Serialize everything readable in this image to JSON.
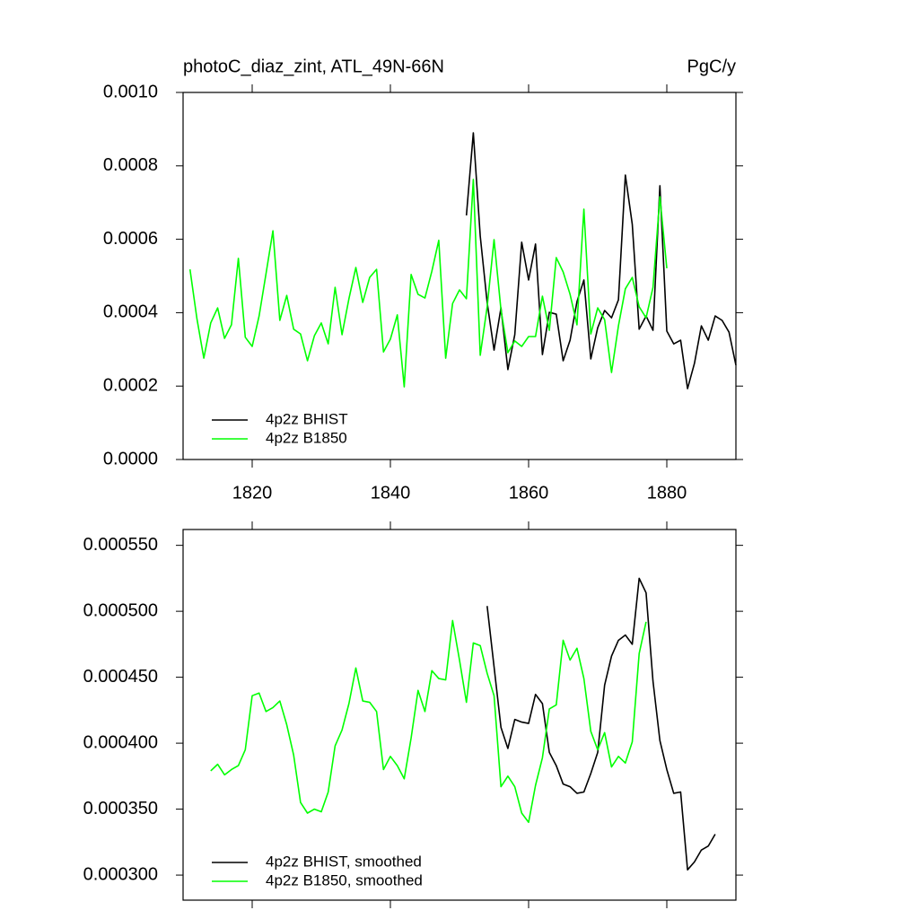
{
  "chart_data": [
    {
      "type": "line",
      "title": "photoC_diaz_zint, ATL_49N-66N",
      "right_title": "PgC/y",
      "xlim": [
        1810,
        1890
      ],
      "xticks": [
        1820,
        1840,
        1860,
        1880
      ],
      "ylim": [
        0,
        0.001
      ],
      "yticks": [
        {
          "value": 0,
          "label": "0.0000"
        },
        {
          "value": 0.0002,
          "label": "0.0002"
        },
        {
          "value": 0.0004,
          "label": "0.0004"
        },
        {
          "value": 0.0006,
          "label": "0.0006"
        },
        {
          "value": 0.0008,
          "label": "0.0008"
        },
        {
          "value": 0.001,
          "label": "0.0010"
        }
      ],
      "legend": "lower left",
      "series": [
        {
          "name": "4p2z BHIST",
          "color": "#000000",
          "x": [
            1851,
            1852,
            1853,
            1854,
            1855,
            1856,
            1857,
            1858,
            1859,
            1860,
            1861,
            1862,
            1863,
            1864,
            1865,
            1866,
            1867,
            1868,
            1869,
            1870,
            1871,
            1872,
            1873,
            1874,
            1875,
            1876,
            1877,
            1878,
            1879,
            1880,
            1881,
            1882,
            1883,
            1884,
            1885,
            1886,
            1887,
            1888,
            1889,
            1890
          ],
          "values": [
            0.000665,
            0.00089,
            0.000609,
            0.000428,
            0.000298,
            0.000413,
            0.000245,
            0.00034,
            0.000592,
            0.000489,
            0.000587,
            0.000286,
            0.000401,
            0.000396,
            0.000269,
            0.000325,
            0.00043,
            0.000489,
            0.000274,
            0.000359,
            0.000406,
            0.000386,
            0.000435,
            0.000775,
            0.000641,
            0.000355,
            0.000391,
            0.000352,
            0.000746,
            0.00035,
            0.000315,
            0.000325,
            0.000193,
            0.000262,
            0.000364,
            0.000325,
            0.000391,
            0.000379,
            0.000347,
            0.000257
          ]
        },
        {
          "name": "4p2z B1850",
          "color": "#00ff00",
          "x": [
            1811,
            1812,
            1813,
            1814,
            1815,
            1816,
            1817,
            1818,
            1819,
            1820,
            1821,
            1822,
            1823,
            1824,
            1825,
            1826,
            1827,
            1828,
            1829,
            1830,
            1831,
            1832,
            1833,
            1834,
            1835,
            1836,
            1837,
            1838,
            1839,
            1840,
            1841,
            1842,
            1843,
            1844,
            1845,
            1846,
            1847,
            1848,
            1849,
            1850,
            1851,
            1852,
            1853,
            1854,
            1855,
            1856,
            1857,
            1858,
            1859,
            1860,
            1861,
            1862,
            1863,
            1864,
            1865,
            1866,
            1867,
            1868,
            1869,
            1870,
            1871,
            1872,
            1873,
            1874,
            1875,
            1876,
            1877,
            1878,
            1879,
            1880
          ],
          "values": [
            0.000518,
            0.000384,
            0.000276,
            0.000372,
            0.000413,
            0.00033,
            0.000367,
            0.000548,
            0.000333,
            0.000308,
            0.000391,
            0.000506,
            0.000623,
            0.000379,
            0.000447,
            0.000355,
            0.000342,
            0.000269,
            0.000337,
            0.000372,
            0.000315,
            0.000469,
            0.00034,
            0.000438,
            0.000523,
            0.000428,
            0.000496,
            0.000518,
            0.000293,
            0.000328,
            0.000394,
            0.000198,
            0.000504,
            0.00045,
            0.00044,
            0.000513,
            0.000597,
            0.000276,
            0.000425,
            0.000462,
            0.000438,
            0.000763,
            0.000284,
            0.000416,
            0.000599,
            0.000408,
            0.000291,
            0.000323,
            0.000308,
            0.000335,
            0.000335,
            0.000445,
            0.000352,
            0.00055,
            0.000511,
            0.00045,
            0.000367,
            0.000682,
            0.000342,
            0.000413,
            0.000381,
            0.000237,
            0.000364,
            0.000465,
            0.000496,
            0.000416,
            0.000386,
            0.000469,
            0.000716,
            0.000521
          ]
        }
      ]
    },
    {
      "type": "line",
      "xlim": [
        1810,
        1890
      ],
      "xticks": [
        1820,
        1840,
        1860,
        1880
      ],
      "ylim": [
        0.000281,
        0.000562
      ],
      "yticks": [
        {
          "value": 0.0003,
          "label": "0.000300"
        },
        {
          "value": 0.00035,
          "label": "0.000350"
        },
        {
          "value": 0.0004,
          "label": "0.000400"
        },
        {
          "value": 0.00045,
          "label": "0.000450"
        },
        {
          "value": 0.0005,
          "label": "0.000500"
        },
        {
          "value": 0.00055,
          "label": "0.000550"
        }
      ],
      "legend": "lower left",
      "series": [
        {
          "name": "4p2z BHIST, smoothed",
          "color": "#000000",
          "x": [
            1854,
            1855,
            1856,
            1857,
            1858,
            1859,
            1860,
            1861,
            1862,
            1863,
            1864,
            1865,
            1866,
            1867,
            1868,
            1869,
            1870,
            1871,
            1872,
            1873,
            1874,
            1875,
            1876,
            1877,
            1878,
            1879,
            1880,
            1881,
            1882,
            1883,
            1884,
            1885,
            1886,
            1887
          ],
          "values": [
            0.000504,
            0.000458,
            0.000412,
            0.000396,
            0.000418,
            0.000416,
            0.000415,
            0.000437,
            0.00043,
            0.000393,
            0.000383,
            0.000369,
            0.000367,
            0.000362,
            0.000363,
            0.000377,
            0.000393,
            0.000444,
            0.000466,
            0.000478,
            0.000482,
            0.000475,
            0.000525,
            0.000514,
            0.000447,
            0.000402,
            0.00038,
            0.000362,
            0.000363,
            0.000304,
            0.00031,
            0.000319,
            0.000322,
            0.000331
          ]
        },
        {
          "name": "4p2z B1850, smoothed",
          "color": "#00ff00",
          "x": [
            1814,
            1815,
            1816,
            1817,
            1818,
            1819,
            1820,
            1821,
            1822,
            1823,
            1824,
            1825,
            1826,
            1827,
            1828,
            1829,
            1830,
            1831,
            1832,
            1833,
            1834,
            1835,
            1836,
            1837,
            1838,
            1839,
            1840,
            1841,
            1842,
            1843,
            1844,
            1845,
            1846,
            1847,
            1848,
            1849,
            1850,
            1851,
            1852,
            1853,
            1854,
            1855,
            1856,
            1857,
            1858,
            1859,
            1860,
            1861,
            1862,
            1863,
            1864,
            1865,
            1866,
            1867,
            1868,
            1869,
            1870,
            1871,
            1872,
            1873,
            1874,
            1875,
            1876,
            1877
          ],
          "values": [
            0.000379,
            0.000384,
            0.000376,
            0.00038,
            0.000383,
            0.000395,
            0.000436,
            0.000438,
            0.000424,
            0.000427,
            0.000432,
            0.000414,
            0.000391,
            0.000355,
            0.000347,
            0.00035,
            0.000348,
            0.000363,
            0.000398,
            0.00041,
            0.00043,
            0.000457,
            0.000432,
            0.000431,
            0.000424,
            0.00038,
            0.00039,
            0.000383,
            0.000373,
            0.000404,
            0.00044,
            0.000424,
            0.000455,
            0.000449,
            0.000448,
            0.000493,
            0.000463,
            0.000431,
            0.000476,
            0.000474,
            0.000453,
            0.000436,
            0.000367,
            0.000375,
            0.000367,
            0.000347,
            0.00034,
            0.000368,
            0.000389,
            0.000426,
            0.000429,
            0.000478,
            0.000463,
            0.000472,
            0.000449,
            0.000409,
            0.000395,
            0.000408,
            0.000382,
            0.00039,
            0.000385,
            0.000401,
            0.000468,
            0.000492
          ]
        }
      ]
    }
  ]
}
